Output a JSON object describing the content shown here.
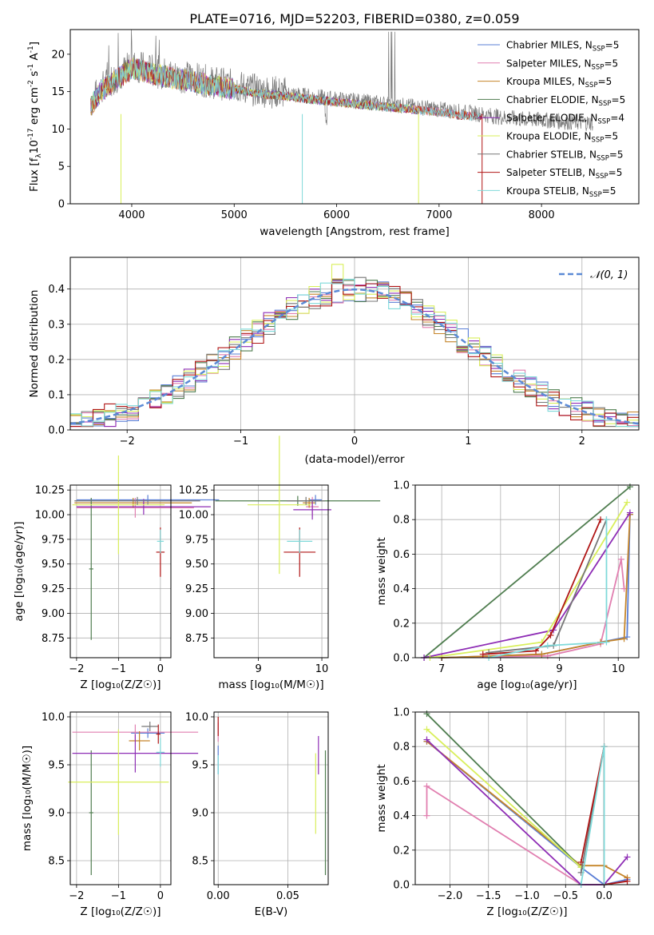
{
  "colors": {
    "Chabrier MILES": "#5b7fd6",
    "Salpeter MILES": "#e17fb0",
    "Kroupa MILES": "#c5852a",
    "Chabrier ELODIE": "#4f7d4f",
    "Salpeter ELODIE": "#8e2db5",
    "Kroupa ELODIE": "#d9ef5b",
    "Chabrier STELIB": "#777777",
    "Salpeter STELIB": "#b01515",
    "Kroupa STELIB": "#7fdada"
  },
  "panels": {
    "spectrum": {
      "title": "PLATE=0716, MJD=52203, FIBERID=0380, z=0.059",
      "xlabel": "wavelength [Angstrom, rest frame]",
      "ylabel_main": "Flux [f",
      "ylabel_sub": "λ",
      "ylabel_rest": "10",
      "ylabel_exp": "-17",
      "ylabel_units": " erg cm",
      "ylabel_exp2": "-2",
      "ylabel_s": " s",
      "ylabel_exp3": "-1",
      "ylabel_A": " A",
      "ylabel_exp4": "-1",
      "ylabel_end": "]",
      "xticks": [
        "4000",
        "5000",
        "6000",
        "7000",
        "8000"
      ],
      "yticks": [
        "0",
        "5",
        "10",
        "15",
        "20"
      ]
    },
    "residuals": {
      "xlabel": "(data-model)/error",
      "ylabel": "Normed distribution",
      "xticks": [
        "−2",
        "−1",
        "0",
        "1",
        "2"
      ],
      "yticks": [
        "0.0",
        "0.1",
        "0.2",
        "0.3",
        "0.4"
      ],
      "legend": "𝒩(0, 1)"
    },
    "age_vs_Z": {
      "xlabel": "Z [log₁₀(Z/Z☉)]",
      "ylabel": "age  [log₁₀(age/yr)]",
      "xticks": [
        "−2",
        "−1",
        "0"
      ],
      "yticks": [
        "8.75",
        "9.00",
        "9.25",
        "9.50",
        "9.75",
        "10.00",
        "10.25"
      ]
    },
    "age_vs_mass": {
      "xlabel": "mass [log₁₀(M/M☉)]",
      "xticks": [
        "9",
        "10"
      ],
      "yticks": [
        "8.75",
        "9.00",
        "9.25",
        "9.50",
        "9.75",
        "10.00",
        "10.25"
      ]
    },
    "weight_vs_age": {
      "xlabel": "age  [log₁₀(age/yr)]",
      "ylabel": "mass weight",
      "xticks": [
        "7",
        "8",
        "9",
        "10"
      ],
      "yticks": [
        "0.0",
        "0.2",
        "0.4",
        "0.6",
        "0.8",
        "1.0"
      ]
    },
    "mass_vs_Z": {
      "xlabel": "Z [log₁₀(Z/Z☉)]",
      "ylabel": "mass [log₁₀(M/M☉)]",
      "xticks": [
        "−2",
        "−1",
        "0"
      ],
      "yticks": [
        "8.5",
        "9.0",
        "9.5",
        "10.0"
      ]
    },
    "mass_vs_ebv": {
      "xlabel": "E(B-V)",
      "xticks": [
        "0.00",
        "0.05"
      ],
      "yticks": [
        "8.5",
        "9.0",
        "9.5",
        "10.0"
      ]
    },
    "weight_vs_Z": {
      "xlabel": "Z [log₁₀(Z/Z☉)]",
      "ylabel": "mass weight",
      "xticks": [
        "−2.0",
        "−1.5",
        "−1.0",
        "−0.5",
        "0.0"
      ],
      "yticks": [
        "0.0",
        "0.2",
        "0.4",
        "0.6",
        "0.8",
        "1.0"
      ]
    }
  },
  "legend_spectrum": [
    {
      "model": "Chabrier MILES",
      "n": "5"
    },
    {
      "model": "Salpeter MILES",
      "n": "5"
    },
    {
      "model": "Kroupa MILES",
      "n": "5"
    },
    {
      "model": "Chabrier ELODIE",
      "n": "5"
    },
    {
      "model": "Salpeter ELODIE",
      "n": "4"
    },
    {
      "model": "Kroupa ELODIE",
      "n": "5"
    },
    {
      "model": "Chabrier STELIB",
      "n": "5"
    },
    {
      "model": "Salpeter STELIB",
      "n": "5"
    },
    {
      "model": "Kroupa STELIB",
      "n": "5"
    }
  ],
  "legend_nssp_prefix": ", N",
  "legend_nssp_sub": "SSP",
  "legend_nssp_eq": "=",
  "chart_data": [
    {
      "type": "line",
      "panel": "spectrum",
      "title": "PLATE=0716, MJD=52203, FIBERID=0380, z=0.059",
      "xlabel": "wavelength [Angstrom, rest frame]",
      "ylabel": "Flux [f_λ 10^-17 erg cm^-2 s^-1 A^-1]",
      "xlim": [
        3400,
        8950
      ],
      "ylim": [
        0,
        23.3
      ],
      "series_note": "observed spectrum (grey) with 9 SSP model fits overlapping",
      "envelope": {
        "x": [
          3600,
          3700,
          3800,
          3900,
          4000,
          4100,
          4200,
          4400,
          4600,
          4800,
          5000,
          5200,
          5500,
          5800,
          6000,
          6300,
          6600,
          6900,
          7200,
          7400,
          7600,
          7800,
          8000,
          8200,
          8500
        ],
        "y": [
          13.5,
          15.5,
          16.5,
          17.5,
          18.5,
          18.2,
          17.8,
          17.2,
          16.8,
          16.2,
          15.8,
          15.2,
          14.8,
          14.3,
          14.0,
          13.6,
          13.2,
          12.8,
          12.3,
          12.0,
          11.6,
          11.3,
          11.2,
          11.0,
          10.8
        ]
      }
    },
    {
      "type": "bar",
      "panel": "residuals",
      "xlabel": "(data-model)/error",
      "ylabel": "Normed distribution",
      "xlim": [
        -2.5,
        2.5
      ],
      "ylim": [
        0,
        0.49
      ],
      "normal_reference": {
        "name": "𝒩(0, 1)",
        "mu": 0,
        "sigma": 1
      }
    },
    {
      "type": "scatter",
      "panel": "age_vs_Z",
      "xlim": [
        -2.15,
        0.25
      ],
      "ylim": [
        8.55,
        10.3
      ],
      "points": [
        {
          "model": "Chabrier MILES",
          "x": -0.3,
          "y": 10.15,
          "xerr": 1.7,
          "yerr": 0.05
        },
        {
          "model": "Salpeter MILES",
          "x": -0.6,
          "y": 10.07,
          "xerr": 1.4,
          "yerr": 0.1
        },
        {
          "model": "Kroupa MILES",
          "x": -0.65,
          "y": 10.12,
          "xerr": 1.4,
          "yerr": 0.05
        },
        {
          "model": "Chabrier ELODIE",
          "x": -1.65,
          "y": 9.45,
          "xerr": 0.05,
          "yerr": 0.72
        },
        {
          "model": "Salpeter ELODIE",
          "x": -0.4,
          "y": 10.08,
          "xerr": 1.6,
          "yerr": 0.08
        },
        {
          "model": "Kroupa ELODIE",
          "x": -1.0,
          "y": 10.1,
          "xerr": 1.1,
          "yerr": 0.5
        },
        {
          "model": "Chabrier STELIB",
          "x": -0.55,
          "y": 10.14,
          "xerr": 1.5,
          "yerr": 0.04
        },
        {
          "model": "Salpeter STELIB",
          "x": 0.0,
          "y": 9.62,
          "xerr": 0.1,
          "yerr": 0.25
        },
        {
          "model": "Kroupa STELIB",
          "x": 0.0,
          "y": 9.73,
          "xerr": 0.08,
          "yerr": 0.12
        }
      ]
    },
    {
      "type": "scatter",
      "panel": "age_vs_mass",
      "xlim": [
        8.3,
        10.1
      ],
      "ylim": [
        8.55,
        10.3
      ],
      "points": [
        {
          "model": "Chabrier MILES",
          "x": 9.9,
          "y": 10.15,
          "xerr": 0.1,
          "yerr": 0.05
        },
        {
          "model": "Salpeter MILES",
          "x": 9.85,
          "y": 10.08,
          "xerr": 0.1,
          "yerr": 0.1
        },
        {
          "model": "Kroupa MILES",
          "x": 9.8,
          "y": 10.12,
          "xerr": 0.1,
          "yerr": 0.05
        },
        {
          "model": "Chabrier ELODIE",
          "x": 9.62,
          "y": 10.14,
          "xerr": 1.3,
          "yerr": 0.05
        },
        {
          "model": "Salpeter ELODIE",
          "x": 9.85,
          "y": 10.05,
          "xerr": 0.3,
          "yerr": 0.1
        },
        {
          "model": "Kroupa ELODIE",
          "x": 9.33,
          "y": 10.1,
          "xerr": 0.5,
          "yerr": 0.7
        },
        {
          "model": "Chabrier STELIB",
          "x": 9.75,
          "y": 10.14,
          "xerr": 0.3,
          "yerr": 0.04
        },
        {
          "model": "Salpeter STELIB",
          "x": 9.65,
          "y": 9.62,
          "xerr": 0.25,
          "yerr": 0.25
        },
        {
          "model": "Kroupa STELIB",
          "x": 9.65,
          "y": 9.73,
          "xerr": 0.2,
          "yerr": 0.12
        }
      ]
    },
    {
      "type": "line",
      "panel": "weight_vs_age",
      "xlabel": "age  [log₁₀(age/yr)]",
      "ylabel": "mass weight",
      "xlim": [
        6.55,
        10.35
      ],
      "ylim": [
        0,
        1
      ],
      "series": [
        {
          "model": "Chabrier MILES",
          "x": [
            7.0,
            8.7,
            9.7,
            10.15,
            10.2
          ],
          "y": [
            0.0,
            0.02,
            0.09,
            0.12,
            0.83
          ]
        },
        {
          "model": "Salpeter MILES",
          "x": [
            7.0,
            8.8,
            9.7,
            10.05,
            10.1
          ],
          "y": [
            0.0,
            0.01,
            0.08,
            0.57,
            0.4
          ]
        },
        {
          "model": "Kroupa MILES",
          "x": [
            7.0,
            8.7,
            9.7,
            10.1,
            10.2
          ],
          "y": [
            0.0,
            0.02,
            0.09,
            0.11,
            0.83
          ]
        },
        {
          "model": "Chabrier ELODIE",
          "x": [
            6.7,
            10.2
          ],
          "y": [
            0.0,
            0.99
          ]
        },
        {
          "model": "Salpeter ELODIE",
          "x": [
            6.7,
            8.9,
            10.2
          ],
          "y": [
            0.0,
            0.16,
            0.84
          ]
        },
        {
          "model": "Kroupa ELODIE",
          "x": [
            6.8,
            8.7,
            10.15
          ],
          "y": [
            0.0,
            0.09,
            0.9
          ]
        },
        {
          "model": "Chabrier STELIB",
          "x": [
            7.8,
            8.9,
            9.8
          ],
          "y": [
            0.03,
            0.07,
            0.8
          ]
        },
        {
          "model": "Salpeter STELIB",
          "x": [
            7.7,
            8.6,
            8.85,
            9.7
          ],
          "y": [
            0.02,
            0.04,
            0.13,
            0.8
          ]
        },
        {
          "model": "Kroupa STELIB",
          "x": [
            7.8,
            8.8,
            9.8,
            9.8
          ],
          "y": [
            0.0,
            0.07,
            0.09,
            0.8
          ]
        }
      ]
    },
    {
      "type": "scatter",
      "panel": "mass_vs_Z",
      "xlim": [
        -2.15,
        0.25
      ],
      "ylim": [
        8.25,
        10.05
      ],
      "points": [
        {
          "model": "Chabrier MILES",
          "x": -0.3,
          "y": 9.83,
          "xerr": 0.4,
          "yerr": 0.05
        },
        {
          "model": "Salpeter MILES",
          "x": -0.6,
          "y": 9.84,
          "xerr": 1.5,
          "yerr": 0.08
        },
        {
          "model": "Kroupa MILES",
          "x": -0.5,
          "y": 9.75,
          "xerr": 0.25,
          "yerr": 0.1
        },
        {
          "model": "Chabrier ELODIE",
          "x": -1.65,
          "y": 9.0,
          "xerr": 0.05,
          "yerr": 0.65
        },
        {
          "model": "Salpeter ELODIE",
          "x": -0.6,
          "y": 9.62,
          "xerr": 1.5,
          "yerr": 0.2
        },
        {
          "model": "Kroupa ELODIE",
          "x": -1.0,
          "y": 9.32,
          "xerr": 1.2,
          "yerr": 0.55
        },
        {
          "model": "Chabrier STELIB",
          "x": -0.25,
          "y": 9.9,
          "xerr": 0.2,
          "yerr": 0.05
        },
        {
          "model": "Salpeter STELIB",
          "x": -0.05,
          "y": 9.82,
          "xerr": 0.05,
          "yerr": 0.1
        },
        {
          "model": "Kroupa STELIB",
          "x": 0.0,
          "y": 9.63,
          "xerr": 0.1,
          "yerr": 0.15
        }
      ]
    },
    {
      "type": "scatter",
      "panel": "mass_vs_ebv",
      "xlim": [
        -0.003,
        0.079
      ],
      "ylim": [
        8.25,
        10.05
      ],
      "points": [
        {
          "model": "Chabrier MILES",
          "x": 0.0,
          "y": 9.55,
          "xerr": 0,
          "yerr": 0.15
        },
        {
          "model": "Salpeter MILES",
          "x": 0.0,
          "y": 9.84,
          "xerr": 0,
          "yerr": 0.1
        },
        {
          "model": "Kroupa ELODIE",
          "x": 0.07,
          "y": 9.2,
          "xerr": 0,
          "yerr": 0.42
        },
        {
          "model": "Salpeter ELODIE",
          "x": 0.072,
          "y": 9.6,
          "xerr": 0,
          "yerr": 0.2
        },
        {
          "model": "Chabrier ELODIE",
          "x": 0.077,
          "y": 9.0,
          "xerr": 0,
          "yerr": 0.65
        },
        {
          "model": "Salpeter STELIB",
          "x": 0.0,
          "y": 9.9,
          "xerr": 0,
          "yerr": 0.1
        },
        {
          "model": "Kroupa STELIB",
          "x": 0.0,
          "y": 9.5,
          "xerr": 0,
          "yerr": 0.1
        }
      ]
    },
    {
      "type": "line",
      "panel": "weight_vs_Z",
      "xlabel": "Z [log₁₀(Z/Z☉)]",
      "ylabel": "mass weight",
      "xlim": [
        -2.45,
        0.45
      ],
      "ylim": [
        0,
        1
      ],
      "series": [
        {
          "model": "Chabrier MILES",
          "x": [
            -2.3,
            -0.3,
            0.0,
            0.3
          ],
          "y": [
            0.83,
            0.1,
            0.0,
            0.03
          ]
        },
        {
          "model": "Salpeter MILES",
          "x": [
            -2.3,
            -2.3,
            -0.3,
            0.0
          ],
          "y": [
            0.4,
            0.57,
            0.0,
            0.0
          ]
        },
        {
          "model": "Kroupa MILES",
          "x": [
            -2.3,
            -0.3,
            0.0,
            0.3
          ],
          "y": [
            0.83,
            0.11,
            0.11,
            0.04
          ]
        },
        {
          "model": "Chabrier ELODIE",
          "x": [
            -2.3,
            -0.3
          ],
          "y": [
            0.99,
            0.1
          ]
        },
        {
          "model": "Salpeter ELODIE",
          "x": [
            -2.3,
            -0.3,
            0.0,
            0.3
          ],
          "y": [
            0.84,
            0.0,
            0.0,
            0.16
          ]
        },
        {
          "model": "Kroupa ELODIE",
          "x": [
            -2.3,
            -0.3
          ],
          "y": [
            0.9,
            0.1
          ]
        },
        {
          "model": "Chabrier STELIB",
          "x": [
            -0.3,
            0.0
          ],
          "y": [
            0.07,
            0.8
          ]
        },
        {
          "model": "Salpeter STELIB",
          "x": [
            -0.3,
            0.0,
            0.0,
            0.3
          ],
          "y": [
            0.13,
            0.8,
            0.0,
            0.02
          ]
        },
        {
          "model": "Kroupa STELIB",
          "x": [
            -0.3,
            0.0,
            0.0
          ],
          "y": [
            0.0,
            0.8,
            0.0
          ]
        }
      ]
    }
  ]
}
